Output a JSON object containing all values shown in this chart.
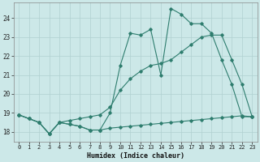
{
  "xlabel": "Humidex (Indice chaleur)",
  "ylabel": "",
  "bg_color": "#cce8e8",
  "line_color": "#2e7d6e",
  "grid_color": "#b0d0d0",
  "xlim": [
    -0.5,
    23.5
  ],
  "ylim": [
    17.5,
    24.8
  ],
  "yticks": [
    18,
    19,
    20,
    21,
    22,
    23,
    24
  ],
  "xticks": [
    0,
    1,
    2,
    3,
    4,
    5,
    6,
    7,
    8,
    9,
    10,
    11,
    12,
    13,
    14,
    15,
    16,
    17,
    18,
    19,
    20,
    21,
    22,
    23
  ],
  "line1_x": [
    0,
    1,
    2,
    3,
    4,
    5,
    6,
    7,
    8,
    9,
    10,
    11,
    12,
    13,
    14,
    15,
    16,
    17,
    18,
    19,
    20,
    21,
    22,
    23
  ],
  "line1_y": [
    18.9,
    18.7,
    18.5,
    17.9,
    18.5,
    18.4,
    18.3,
    18.1,
    18.1,
    19.0,
    21.5,
    23.2,
    23.1,
    23.4,
    21.0,
    24.5,
    24.2,
    23.7,
    23.7,
    23.2,
    21.8,
    20.5,
    18.8,
    18.8
  ],
  "line2_x": [
    0,
    1,
    2,
    3,
    4,
    5,
    6,
    7,
    8,
    9,
    10,
    11,
    12,
    13,
    14,
    15,
    16,
    17,
    18,
    19,
    20,
    21,
    22,
    23
  ],
  "line2_y": [
    18.9,
    18.7,
    18.5,
    17.9,
    18.5,
    18.4,
    18.3,
    18.1,
    18.1,
    18.2,
    18.25,
    18.3,
    18.35,
    18.4,
    18.45,
    18.5,
    18.55,
    18.6,
    18.65,
    18.7,
    18.75,
    18.8,
    18.85,
    18.8
  ],
  "line3_x": [
    0,
    1,
    2,
    3,
    4,
    5,
    6,
    7,
    8,
    9,
    10,
    11,
    12,
    13,
    14,
    15,
    16,
    17,
    18,
    19,
    20,
    21,
    22,
    23
  ],
  "line3_y": [
    18.9,
    18.7,
    18.5,
    17.9,
    18.5,
    18.6,
    18.7,
    18.8,
    18.9,
    19.3,
    20.2,
    20.8,
    21.2,
    21.5,
    21.6,
    21.8,
    22.2,
    22.6,
    23.0,
    23.1,
    23.1,
    21.8,
    20.5,
    18.8
  ]
}
